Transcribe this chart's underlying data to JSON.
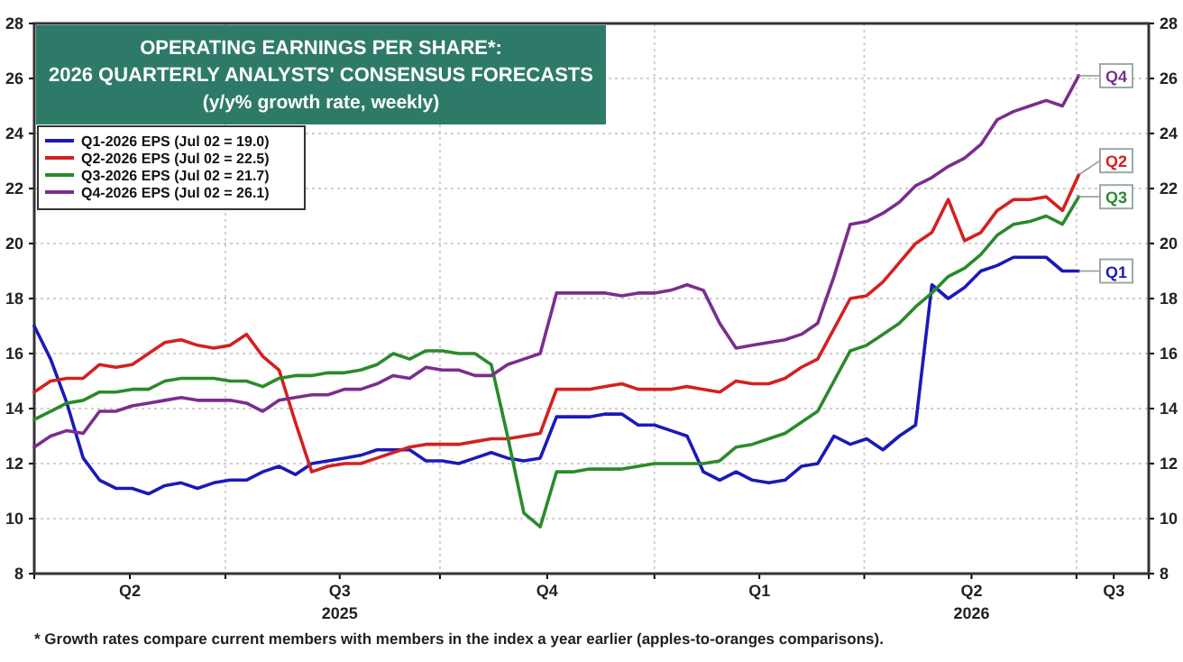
{
  "chart_data": {
    "type": "line",
    "title": "OPERATING EARNINGS PER SHARE*:\n2026 QUARTERLY ANALYSTS' CONSENSUS FORECASTS",
    "subtitle": "(y/y% growth rate, weekly)",
    "x": [
      "2025-04-10",
      "2025-04-17",
      "2025-04-24",
      "2025-05-01",
      "2025-05-08",
      "2025-05-15",
      "2025-05-22",
      "2025-05-29",
      "2025-06-05",
      "2025-06-12",
      "2025-06-19",
      "2025-06-26",
      "2025-07-03",
      "2025-07-10",
      "2025-07-17",
      "2025-07-24",
      "2025-07-31",
      "2025-08-07",
      "2025-08-14",
      "2025-08-21",
      "2025-08-28",
      "2025-09-04",
      "2025-09-11",
      "2025-09-18",
      "2025-09-25",
      "2025-10-02",
      "2025-10-09",
      "2025-10-16",
      "2025-10-23",
      "2025-10-30",
      "2025-11-06",
      "2025-11-13",
      "2025-11-20",
      "2025-11-27",
      "2025-12-04",
      "2025-12-11",
      "2025-12-18",
      "2025-12-25",
      "2026-01-01",
      "2026-01-08",
      "2026-01-15",
      "2026-01-22",
      "2026-01-29",
      "2026-02-05",
      "2026-02-12",
      "2026-02-19",
      "2026-02-26",
      "2026-03-05",
      "2026-03-12",
      "2026-03-19",
      "2026-03-26",
      "2026-04-02",
      "2026-04-09",
      "2026-04-16",
      "2026-04-23",
      "2026-04-30",
      "2026-05-07",
      "2026-05-14",
      "2026-05-21",
      "2026-05-28",
      "2026-06-04",
      "2026-06-11",
      "2026-06-18",
      "2026-06-25",
      "2026-07-02"
    ],
    "series": [
      {
        "name": "Q1-2026 EPS (Jul 02 = 19.0)",
        "color": "#1a1ab8",
        "values": [
          17.0,
          15.8,
          14.2,
          12.2,
          11.4,
          11.1,
          11.1,
          10.9,
          11.2,
          11.3,
          11.1,
          11.3,
          11.4,
          11.4,
          11.7,
          11.9,
          11.6,
          12.0,
          12.1,
          12.2,
          12.3,
          12.5,
          12.5,
          12.5,
          12.1,
          12.1,
          12.0,
          12.2,
          12.4,
          12.2,
          12.1,
          12.2,
          13.7,
          13.7,
          13.7,
          13.8,
          13.8,
          13.4,
          13.4,
          13.2,
          13.0,
          11.7,
          11.4,
          11.7,
          11.4,
          11.3,
          11.4,
          11.9,
          12.0,
          13.0,
          12.7,
          12.9,
          12.5,
          13.0,
          13.4,
          18.5,
          18.0,
          18.4,
          19.0,
          19.2,
          19.5,
          19.5,
          19.5,
          19.0,
          19.0
        ]
      },
      {
        "name": "Q2-2026 EPS (Jul 02 = 22.5)",
        "color": "#d42020",
        "values": [
          14.6,
          15.0,
          15.1,
          15.1,
          15.6,
          15.5,
          15.6,
          16.0,
          16.4,
          16.5,
          16.3,
          16.2,
          16.3,
          16.7,
          15.9,
          15.4,
          13.5,
          11.7,
          11.9,
          12.0,
          12.0,
          12.2,
          12.4,
          12.6,
          12.7,
          12.7,
          12.7,
          12.8,
          12.9,
          12.9,
          13.0,
          13.1,
          14.7,
          14.7,
          14.7,
          14.8,
          14.9,
          14.7,
          14.7,
          14.7,
          14.8,
          14.7,
          14.6,
          15.0,
          14.9,
          14.9,
          15.1,
          15.5,
          15.8,
          16.9,
          18.0,
          18.1,
          18.6,
          19.3,
          20.0,
          20.4,
          21.6,
          20.1,
          20.4,
          21.2,
          21.6,
          21.6,
          21.7,
          21.2,
          22.5
        ]
      },
      {
        "name": "Q3-2026 EPS (Jul 02 = 21.7)",
        "color": "#2a8a2a",
        "values": [
          13.6,
          13.9,
          14.2,
          14.3,
          14.6,
          14.6,
          14.7,
          14.7,
          15.0,
          15.1,
          15.1,
          15.1,
          15.0,
          15.0,
          14.8,
          15.1,
          15.2,
          15.2,
          15.3,
          15.3,
          15.4,
          15.6,
          16.0,
          15.8,
          16.1,
          16.1,
          16.0,
          16.0,
          15.6,
          13.0,
          10.2,
          9.7,
          11.7,
          11.7,
          11.8,
          11.8,
          11.8,
          11.9,
          12.0,
          12.0,
          12.0,
          12.0,
          12.1,
          12.6,
          12.7,
          12.9,
          13.1,
          13.5,
          13.9,
          15.0,
          16.1,
          16.3,
          16.7,
          17.1,
          17.7,
          18.2,
          18.8,
          19.1,
          19.6,
          20.3,
          20.7,
          20.8,
          21.0,
          20.7,
          21.7
        ]
      },
      {
        "name": "Q4-2026 EPS (Jul 02 = 26.1)",
        "color": "#7b2d8e",
        "values": [
          12.6,
          13.0,
          13.2,
          13.1,
          13.9,
          13.9,
          14.1,
          14.2,
          14.3,
          14.4,
          14.3,
          14.3,
          14.3,
          14.2,
          13.9,
          14.3,
          14.4,
          14.5,
          14.5,
          14.7,
          14.7,
          14.9,
          15.2,
          15.1,
          15.5,
          15.4,
          15.4,
          15.2,
          15.2,
          15.6,
          15.8,
          16.0,
          18.2,
          18.2,
          18.2,
          18.2,
          18.1,
          18.2,
          18.2,
          18.3,
          18.5,
          18.3,
          17.1,
          16.2,
          16.3,
          16.4,
          16.5,
          16.7,
          17.1,
          18.8,
          20.7,
          20.8,
          21.1,
          21.5,
          22.1,
          22.4,
          22.8,
          23.1,
          23.6,
          24.5,
          24.8,
          25.0,
          25.2,
          25.0,
          26.1
        ]
      }
    ],
    "xlim": [
      "2025-04-10",
      "2026-08-01"
    ],
    "xticks": [
      {
        "value": "2025-05-21",
        "label": "Q2"
      },
      {
        "value": "2025-07-01",
        "label": null
      },
      {
        "value": "2025-08-19",
        "label": "Q3\n2025"
      },
      {
        "value": "2025-10-01",
        "label": null
      },
      {
        "value": "2025-11-16",
        "label": "Q4"
      },
      {
        "value": "2026-01-01",
        "label": null
      },
      {
        "value": "2026-02-15",
        "label": "Q1"
      },
      {
        "value": "2026-04-01",
        "label": null
      },
      {
        "value": "2026-05-17",
        "label": "Q2\n2026"
      },
      {
        "value": "2026-07-01",
        "label": null
      },
      {
        "value": "2026-07-17",
        "label": "Q3"
      }
    ],
    "ylim": [
      8,
      28
    ],
    "yticks": [
      8,
      10,
      12,
      14,
      16,
      18,
      20,
      22,
      24,
      26,
      28
    ],
    "y2lim": [
      8,
      28
    ],
    "y2ticks": [
      8,
      10,
      12,
      14,
      16,
      18,
      20,
      22,
      24,
      26,
      28
    ],
    "grid": true,
    "legend": "top left",
    "annotations": [
      {
        "text": "Q1",
        "x": "2026-07-02",
        "y": 19.0
      },
      {
        "text": "Q2",
        "x": "2026-07-02",
        "y": 22.5
      },
      {
        "text": "Q3",
        "x": "2026-07-02",
        "y": 21.7
      },
      {
        "text": "Q4",
        "x": "2026-07-02",
        "y": 26.1
      },
      "* Growth rates compare current members with members in the index a year earlier (apples-to-oranges comparisons)."
    ]
  }
}
